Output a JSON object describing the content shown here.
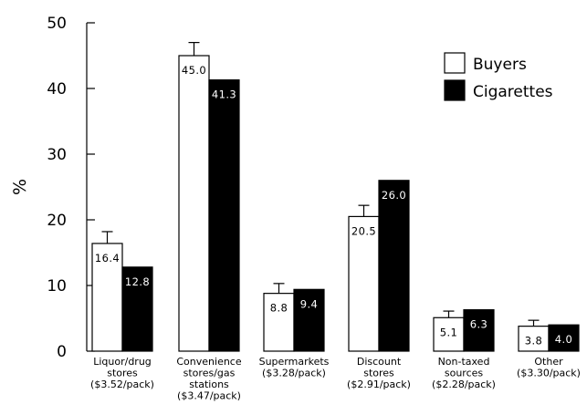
{
  "chart_data": {
    "type": "bar",
    "ylabel": "%",
    "xlabel": "",
    "ylim": [
      0,
      50
    ],
    "yticks": [
      0,
      10,
      20,
      30,
      40,
      50
    ],
    "grid": false,
    "legend_position": "top-right",
    "categories": [
      [
        "Liquor/drug",
        "stores",
        "($3.52/pack)"
      ],
      [
        "Convenience",
        "stores/gas",
        "stations",
        "($3.47/pack)"
      ],
      [
        "Supermarkets",
        "($3.28/pack)"
      ],
      [
        "Discount",
        "stores",
        "($2.91/pack)"
      ],
      [
        "Non-taxed",
        "sources",
        "($2.28/pack)"
      ],
      [
        "Other",
        "($3.30/pack)"
      ]
    ],
    "series": [
      {
        "name": "Buyers",
        "fill": "#ffffff",
        "values": [
          16.4,
          45.0,
          8.8,
          20.5,
          5.1,
          3.8
        ],
        "labels": [
          "16.4",
          "45.0",
          "8.8",
          "20.5",
          "5.1",
          "3.8"
        ],
        "error_upper": [
          18.2,
          47.0,
          10.3,
          22.2,
          6.1,
          4.7
        ]
      },
      {
        "name": "Cigarettes",
        "fill": "#000000",
        "values": [
          12.8,
          41.3,
          9.4,
          26.0,
          6.3,
          4.0
        ],
        "labels": [
          "12.8",
          "41.3",
          "9.4",
          "26.0",
          "6.3",
          "4.0"
        ]
      }
    ]
  }
}
